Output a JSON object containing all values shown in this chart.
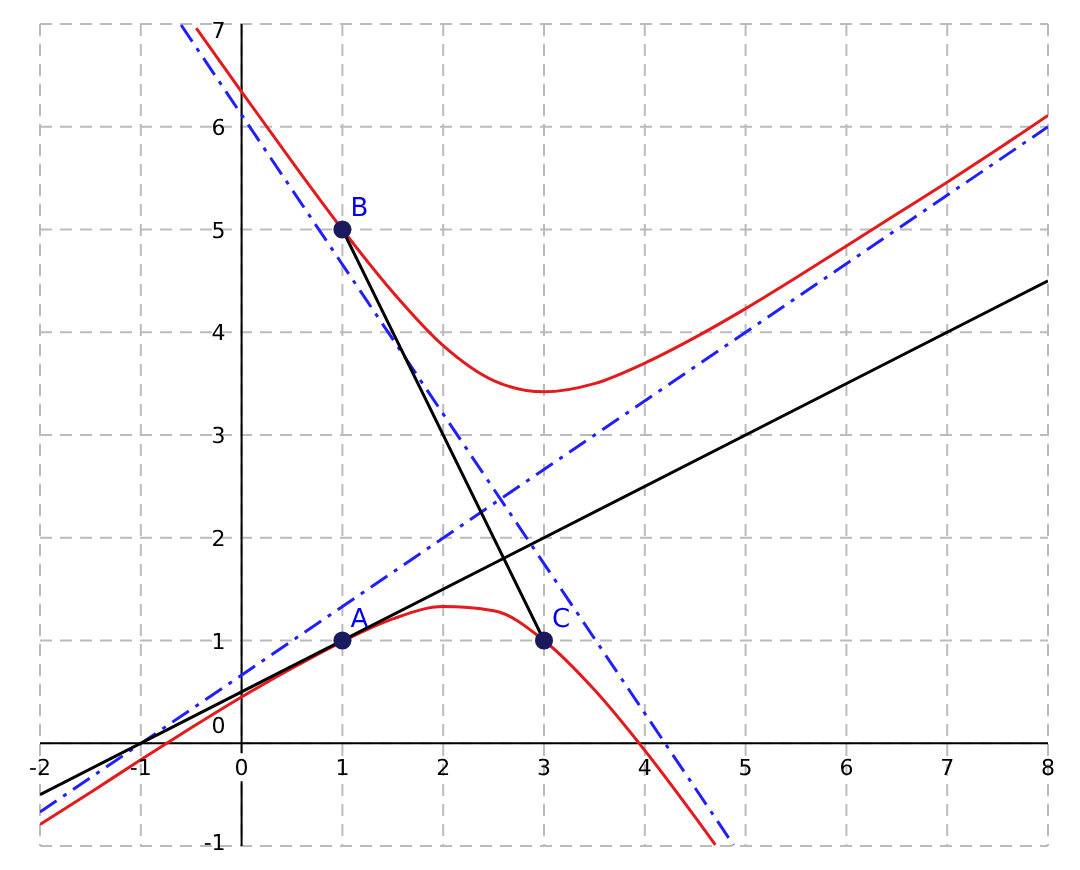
{
  "chart_data": {
    "type": "line",
    "xlim": [
      -2,
      8
    ],
    "ylim": [
      -1,
      7
    ],
    "xticks": [
      -2,
      -1,
      0,
      1,
      2,
      3,
      4,
      5,
      6,
      7,
      8
    ],
    "yticks": [
      -1,
      0,
      1,
      2,
      3,
      4,
      5,
      6,
      7
    ],
    "grid": true,
    "series": [
      {
        "color": "#e41a1c",
        "line_style": "solid",
        "marker": "none",
        "x": [
          -0.45,
          0,
          0.5,
          1,
          1.5,
          2,
          2.5,
          3,
          3.5,
          4,
          4.5,
          5,
          5.5,
          6,
          6.5,
          7,
          7.5,
          8
        ],
        "values": [
          6.96,
          6.34,
          5.66,
          5.0,
          4.39,
          3.87,
          3.53,
          3.42,
          3.5,
          3.7,
          3.95,
          4.23,
          4.53,
          4.84,
          5.15,
          5.46,
          5.78,
          6.11
        ]
      },
      {
        "color": "#e41a1c",
        "line_style": "solid",
        "marker": "none",
        "x": [
          -2,
          -1.5,
          -1,
          -0.5,
          0,
          0.5,
          1,
          1.5,
          2,
          2.5,
          3,
          3.5,
          4,
          4.5,
          4.7
        ],
        "values": [
          -0.79,
          -0.48,
          -0.16,
          0.15,
          0.45,
          0.73,
          0.99,
          1.21,
          1.33,
          1.29,
          1.0,
          0.52,
          -0.07,
          -0.72,
          -0.99
        ]
      },
      {
        "color": "#2020ff",
        "line_style": "dashed",
        "marker": "none",
        "x": [
          -2,
          8
        ],
        "values": [
          -0.67,
          6.0
        ]
      },
      {
        "color": "#2020ff",
        "line_style": "dashed",
        "marker": "none",
        "x": [
          -0.6,
          4.88
        ],
        "values": [
          6.99,
          -0.99
        ]
      },
      {
        "color": "#000000",
        "line_style": "solid",
        "marker": "none",
        "x": [
          -2,
          8
        ],
        "values": [
          -0.5,
          4.5
        ]
      },
      {
        "color": "#000000",
        "line_style": "solid",
        "marker": "none",
        "x": [
          1,
          3
        ],
        "values": [
          5,
          1
        ]
      },
      {
        "type": "scatter",
        "color": "#1a1a5e",
        "marker": "circle",
        "x": [
          1,
          1,
          3
        ],
        "values": [
          1,
          5,
          1
        ],
        "value_labels": [
          "A",
          "B",
          "C"
        ]
      }
    ]
  }
}
